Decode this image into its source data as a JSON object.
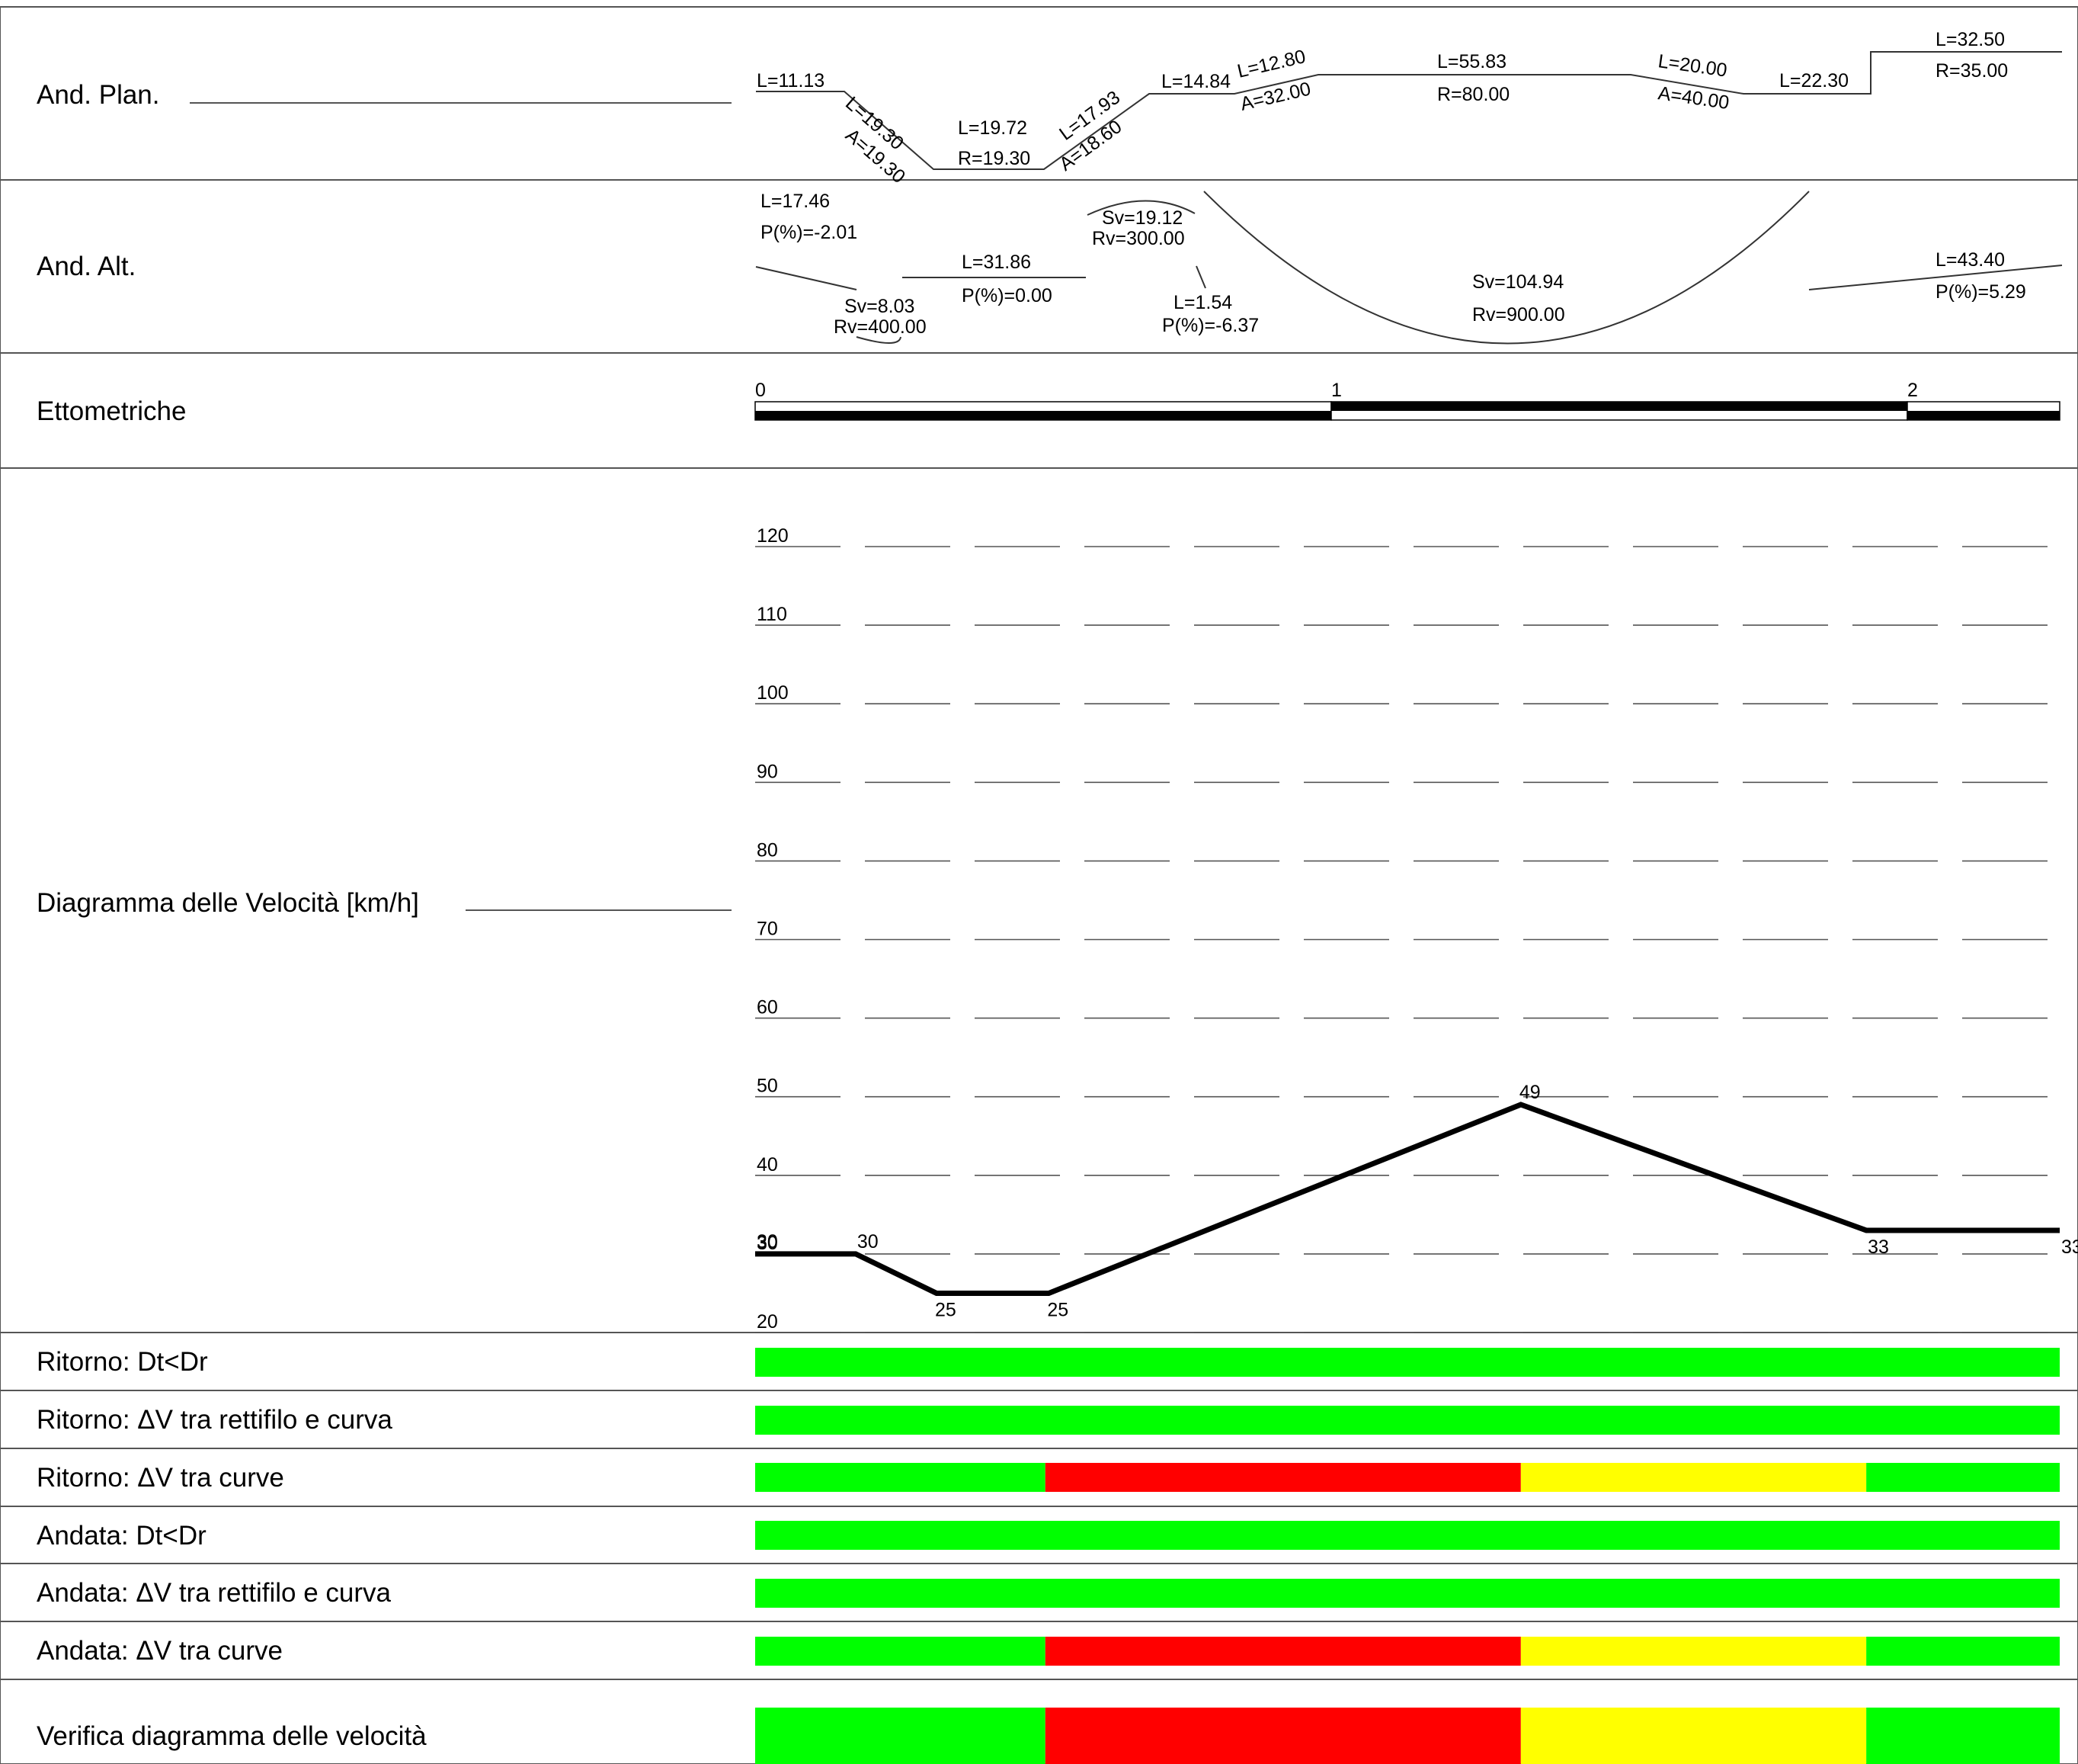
{
  "rows": {
    "plan": "And. Plan.",
    "alt": "And. Alt.",
    "etto": "Ettometriche",
    "diag": "Diagramma delle Velocità [km/h]",
    "rit_dt": "Ritorno: Dt<Dr",
    "rit_rc": "Ritorno: ΔV tra rettifilo e curva",
    "rit_cc": "Ritorno: ΔV tra curve",
    "and_dt": "Andata: Dt<Dr",
    "and_rc": "Andata: ΔV tra rettifilo e curva",
    "and_cc": "Andata: ΔV tra curve",
    "verifica": "Verifica diagramma delle velocità"
  },
  "plan": {
    "l1": "L=11.13",
    "l2": "L=19.30",
    "a2": "A=19.30",
    "l3": "L=19.72",
    "r3": "R=19.30",
    "l4": "L=17.93",
    "a4": "A=18.60",
    "l5": "L=14.84",
    "l6": "L=12.80",
    "a6": "A=32.00",
    "l7": "L=55.83",
    "r7": "R=80.00",
    "l8": "L=20.00",
    "a8": "A=40.00",
    "l9": "L=22.30",
    "l10": "L=32.50",
    "r10": "R=35.00"
  },
  "alt": {
    "l1": "L=17.46",
    "p1": "P(%)=-2.01",
    "sv1": "Sv=8.03",
    "rv1": "Rv=400.00",
    "l2": "L=31.86",
    "p2": "P(%)=0.00",
    "sv2": "Sv=19.12",
    "rv2": "Rv=300.00",
    "l3": "L=1.54",
    "p3": "P(%)=-6.37",
    "sv3": "Sv=104.94",
    "rv3": "Rv=900.00",
    "l4": "L=43.40",
    "p4": "P(%)=5.29"
  },
  "etto": {
    "m0": "0",
    "m1": "1",
    "m2": "2"
  },
  "chart_data": {
    "type": "line",
    "title": "Diagramma delle Velocità [km/h]",
    "ylim": [
      20,
      120
    ],
    "yticks": [
      "120",
      "110",
      "100",
      "90",
      "80",
      "70",
      "60",
      "50",
      "40",
      "30",
      "20"
    ],
    "grid": true,
    "series": [
      {
        "x": [
          0,
          17.46,
          31.5,
          51.0,
          133.0,
          193.0,
          226.6
        ],
        "values": [
          30,
          30,
          25,
          25,
          49,
          33,
          33
        ]
      }
    ],
    "data_labels": [
      "30",
      "30",
      "25",
      "25",
      "49",
      "33",
      "33"
    ]
  },
  "checks": {
    "colors": {
      "green": "#00ff00",
      "red": "#ff0000",
      "yellow": "#ffff00"
    },
    "rit_dt": [
      "green"
    ],
    "rit_rc": [
      "green"
    ],
    "rit_cc": [
      "green",
      "red",
      "yellow",
      "green"
    ],
    "and_dt": [
      "green"
    ],
    "and_rc": [
      "green"
    ],
    "and_cc": [
      "green",
      "red",
      "yellow",
      "green"
    ],
    "verifica": [
      "green",
      "red",
      "yellow",
      "green"
    ],
    "segments_x": [
      0,
      50.4,
      133.0,
      193.0,
      226.6
    ]
  }
}
